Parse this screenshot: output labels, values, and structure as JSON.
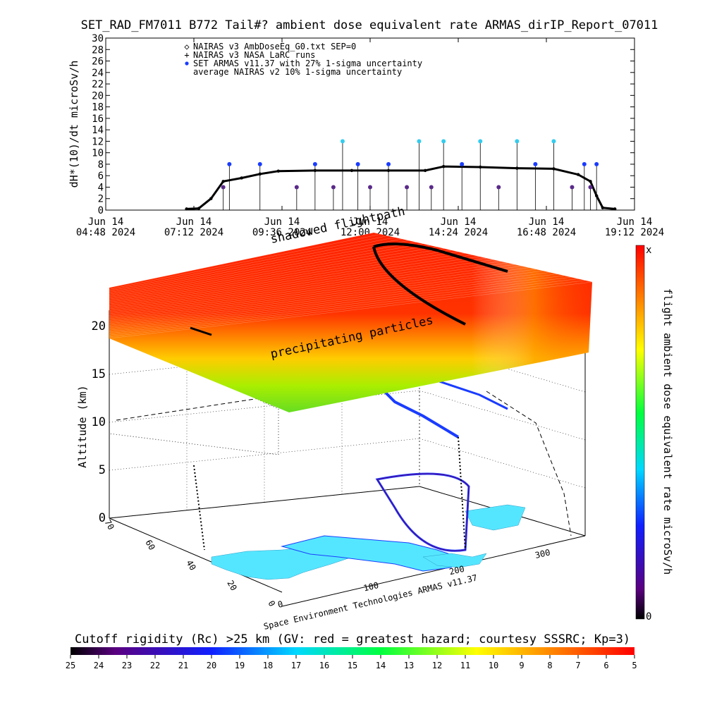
{
  "title": "SET_RAD_FM7011  B772 Tail#? ambient dose equivalent rate ARMAS_dirIP_Report_07011",
  "chart_data": [
    {
      "type": "scatter",
      "title": "SET_RAD_FM7011  B772 Tail#? ambient dose equivalent rate ARMAS_dirIP_Report_07011",
      "ylabel": "dH*(10)/dt microSv/h",
      "ylim": [
        0,
        30
      ],
      "yticks": [
        "0",
        "2",
        "4",
        "6",
        "8",
        "10",
        "12",
        "14",
        "16",
        "18",
        "20",
        "22",
        "24",
        "26",
        "28",
        "30"
      ],
      "xlim": [
        "2024-06-14 04:48",
        "2024-06-14 19:12"
      ],
      "xticks": [
        {
          "line1": "Jun 14",
          "line2": "04:48 2024"
        },
        {
          "line1": "Jun 14",
          "line2": "07:12 2024"
        },
        {
          "line1": "Jun 14",
          "line2": "09:36 2024"
        },
        {
          "line1": "Jun 14",
          "line2": "12:00 2024"
        },
        {
          "line1": "Jun 14",
          "line2": "14:24 2024"
        },
        {
          "line1": "Jun 14",
          "line2": "16:48 2024"
        },
        {
          "line1": "Jun 14",
          "line2": "19:12 2024"
        }
      ],
      "legend": [
        {
          "symbol": "◇",
          "label": "NAIRAS v3 AmbDoseEq_G0.txt SEP=0",
          "color": "#000000"
        },
        {
          "symbol": "+",
          "label": "NAIRAS v3 NASA LaRC runs",
          "color": "#000000"
        },
        {
          "symbol": "●",
          "label": "SET ARMAS v11.37 with 27% 1-sigma uncertainty",
          "color": "#1a3cff"
        },
        {
          "symbol": "",
          "label": "average NAIRAS v2 10% 1-sigma uncertainty",
          "color": "#000000"
        }
      ],
      "legend_position": "top-left",
      "series": [
        {
          "name": "NAIRAS v3 AmbDoseEq_G0.txt SEP=0",
          "color": "#000000",
          "points": [
            [
              "2024-06-14 07:00",
              0.2
            ],
            [
              "2024-06-14 07:20",
              0.3
            ],
            [
              "2024-06-14 07:40",
              2.0
            ],
            [
              "2024-06-14 08:00",
              5.0
            ],
            [
              "2024-06-14 08:30",
              5.6
            ],
            [
              "2024-06-14 09:00",
              6.3
            ],
            [
              "2024-06-14 09:30",
              6.8
            ],
            [
              "2024-06-14 10:30",
              6.9
            ],
            [
              "2024-06-14 11:30",
              6.9
            ],
            [
              "2024-06-14 12:30",
              6.9
            ],
            [
              "2024-06-14 13:30",
              6.9
            ],
            [
              "2024-06-14 14:00",
              7.6
            ],
            [
              "2024-06-14 15:00",
              7.5
            ],
            [
              "2024-06-14 16:00",
              7.3
            ],
            [
              "2024-06-14 17:00",
              7.2
            ],
            [
              "2024-06-14 17:40",
              6.2
            ],
            [
              "2024-06-14 18:00",
              5.0
            ],
            [
              "2024-06-14 18:10",
              2.5
            ],
            [
              "2024-06-14 18:20",
              0.4
            ],
            [
              "2024-06-14 18:40",
              0.2
            ]
          ]
        },
        {
          "name": "SET ARMAS v11.37 with 27% 1-sigma uncertainty",
          "color": "#1a3cff",
          "points": [
            [
              "2024-06-14 08:00",
              4.0
            ],
            [
              "2024-06-14 08:10",
              8.0
            ],
            [
              "2024-06-14 09:00",
              8.0
            ],
            [
              "2024-06-14 10:00",
              4.0
            ],
            [
              "2024-06-14 10:30",
              8.0
            ],
            [
              "2024-06-14 11:00",
              4.0
            ],
            [
              "2024-06-14 11:15",
              12.0
            ],
            [
              "2024-06-14 11:40",
              8.0
            ],
            [
              "2024-06-14 12:00",
              4.0
            ],
            [
              "2024-06-14 12:30",
              8.0
            ],
            [
              "2024-06-14 13:00",
              4.0
            ],
            [
              "2024-06-14 13:20",
              12.0
            ],
            [
              "2024-06-14 13:40",
              4.0
            ],
            [
              "2024-06-14 14:00",
              12.0
            ],
            [
              "2024-06-14 14:30",
              8.0
            ],
            [
              "2024-06-14 15:00",
              12.0
            ],
            [
              "2024-06-14 15:30",
              4.0
            ],
            [
              "2024-06-14 16:00",
              12.0
            ],
            [
              "2024-06-14 16:30",
              8.0
            ],
            [
              "2024-06-14 17:00",
              12.0
            ],
            [
              "2024-06-14 17:30",
              4.0
            ],
            [
              "2024-06-14 17:50",
              8.0
            ],
            [
              "2024-06-14 18:00",
              4.0
            ],
            [
              "2024-06-14 18:10",
              8.0
            ]
          ]
        }
      ]
    },
    {
      "type": "heatmap",
      "annotations": [
        "shadowed flightpath",
        "precipitating particles"
      ],
      "zlabel": "Altitude (km)",
      "zticks": [
        "0",
        "5",
        "10",
        "15",
        "20"
      ],
      "lat_ticks": [
        "0",
        "20",
        "40",
        "60",
        "70"
      ],
      "lon_ticks": [
        "0",
        "100",
        "200",
        "300"
      ],
      "colorbar_label": "flight ambient dose equivalent rate microSv/h",
      "colorbar_range": [
        "0",
        "x"
      ],
      "credit": "Space Environment Technologies ARMAS v11.37"
    },
    {
      "type": "heatmap",
      "title": "Cutoff rigidity (Rc) >25 km (GV: red = greatest hazard; courtesy SSSRC; Kp=3)",
      "ticks": [
        "25",
        "24",
        "23",
        "22",
        "21",
        "20",
        "19",
        "18",
        "17",
        "16",
        "15",
        "14",
        "13",
        "12",
        "11",
        "10",
        "9",
        "8",
        "7",
        "6",
        "5"
      ]
    }
  ]
}
